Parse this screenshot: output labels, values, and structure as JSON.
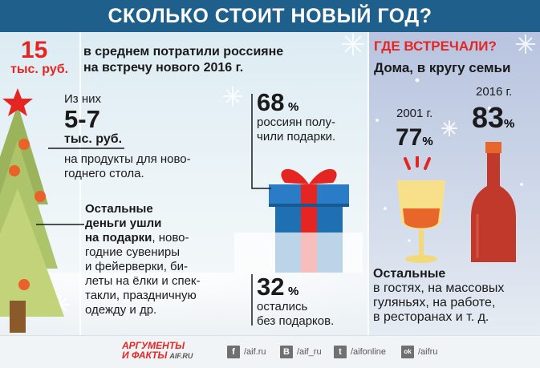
{
  "title": "СКОЛЬКО СТОИТ НОВЫЙ ГОД?",
  "spend": {
    "amount": "15",
    "unit": "тыс. руб.",
    "text_line1": "в среднем потратили россияне",
    "text_line2": "на встречу нового 2016 г."
  },
  "food": {
    "prefix": "Из них",
    "amount": "5-7",
    "unit": "тыс. руб.",
    "line1": "на продукты для ново-",
    "line2": "годнего стола."
  },
  "rest": {
    "line1": "Остальные",
    "line2": "деньги ушли",
    "line3_bold": "на подарки",
    "line3_tail": ", ново-",
    "line4": "годние сувениры",
    "line5": "и фейерверки, би-",
    "line6": "леты на ёлки и спек-",
    "line7": "такли, праздничную",
    "line8": "одежду и др."
  },
  "gifts": {
    "got_value": "68",
    "got_pct": "%",
    "got_line1": "россиян полу-",
    "got_line2": "чили подарки.",
    "none_value": "32",
    "none_pct": "%",
    "none_line1": "остались",
    "none_line2": "без подарков."
  },
  "where": {
    "heading": "ГДЕ ВСТРЕЧАЛИ?",
    "subheading": "Дома, в кругу семьи",
    "year_2001": "2001 г.",
    "value_2001": "77",
    "pct_2001": "%",
    "year_2016": "2016 г.",
    "value_2016": "83",
    "pct_2016": "%",
    "others_heading": "Остальные",
    "others_line1": "в гостях, на массовых",
    "others_line2": "гуляньях, на работе,",
    "others_line3": "в ресторанах и т. д."
  },
  "footer": {
    "logo_line1": "АРГУМЕНТЫ",
    "logo_line2": "И ФАКТЫ",
    "logo_suffix": "AIF.RU",
    "social": [
      {
        "icon": "f",
        "handle": "/aif.ru"
      },
      {
        "icon": "B",
        "handle": "/aif_ru"
      },
      {
        "icon": "t",
        "handle": "/aifonline"
      },
      {
        "icon": "ok",
        "handle": "/aifru"
      }
    ]
  },
  "colors": {
    "header": "#1f5f8b",
    "accent_red": "#e52521",
    "gift_blue": "#1f6fb3",
    "bottle_red": "#c0392b"
  }
}
